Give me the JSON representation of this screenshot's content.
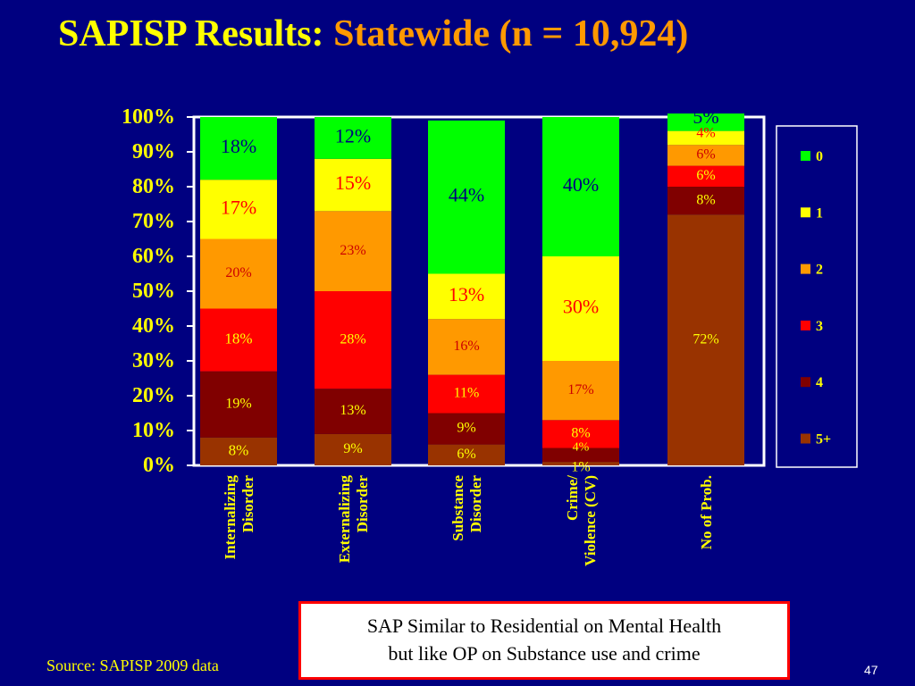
{
  "title": {
    "main": "SAPISP Results: ",
    "highlight": "Statewide (n = 10,924)"
  },
  "note": {
    "line1": "SAP Similar to Residential on Mental Health",
    "line2": "but like OP on Substance use and crime"
  },
  "source": "Source: SAPISP 2009 data",
  "page_number": "47",
  "chart_data": {
    "type": "bar",
    "stacked": true,
    "categories": [
      [
        "Internalizing",
        "Disorder"
      ],
      [
        "Externalizing",
        "Disorder"
      ],
      [
        "Substance",
        "Disorder"
      ],
      [
        "Crime/",
        "Violence (CV)"
      ],
      [
        "No of Prob."
      ]
    ],
    "series": [
      {
        "name": "5+",
        "color": "#993300",
        "values": [
          8,
          9,
          6,
          1,
          72
        ],
        "labels": [
          "8%",
          "9%",
          "6%",
          "1%",
          "72%"
        ]
      },
      {
        "name": "4",
        "color": "#800000",
        "values": [
          19,
          13,
          9,
          4,
          8
        ],
        "labels": [
          "19%",
          "13%",
          "9%",
          "4%",
          "8%"
        ]
      },
      {
        "name": "3",
        "color": "#FF0000",
        "values": [
          18,
          28,
          11,
          8,
          6
        ],
        "labels": [
          "18%",
          "28%",
          "11%",
          "8%",
          "6%"
        ]
      },
      {
        "name": "2",
        "color": "#FF9900",
        "values": [
          20,
          23,
          16,
          17,
          6
        ],
        "labels": [
          "20%",
          "23%",
          "16%",
          "17%",
          "6%"
        ]
      },
      {
        "name": "1",
        "color": "#FFFF00",
        "values": [
          17,
          15,
          13,
          30,
          4
        ],
        "labels": [
          "17%",
          "15%",
          "13%",
          "30%",
          "4%"
        ]
      },
      {
        "name": "0",
        "color": "#00FF00",
        "values": [
          18,
          12,
          44,
          40,
          5
        ],
        "labels": [
          "18%",
          "12%",
          "44%",
          "40%",
          "5%"
        ]
      }
    ],
    "y_ticks": [
      "0%",
      "10%",
      "20%",
      "30%",
      "40%",
      "50%",
      "60%",
      "70%",
      "80%",
      "90%",
      "100%"
    ],
    "ylim": [
      0,
      100
    ],
    "legend_position": "right",
    "grid": false
  }
}
